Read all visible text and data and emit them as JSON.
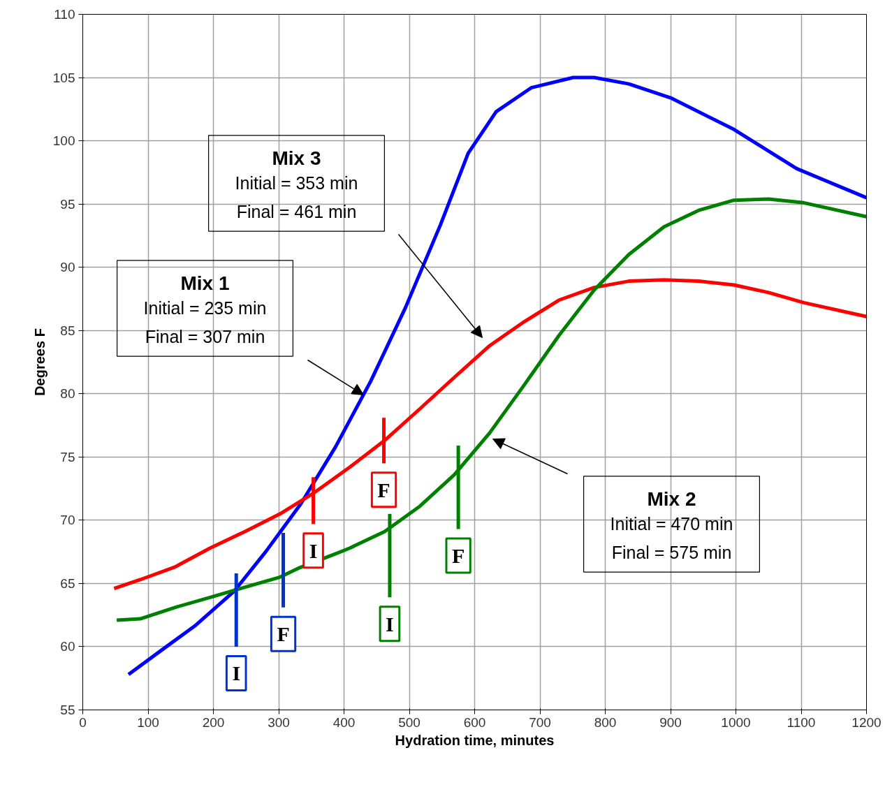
{
  "chart_data": {
    "type": "line",
    "xlabel": "Hydration time, minutes",
    "ylabel": "Degrees F",
    "xlim": [
      0,
      1200
    ],
    "ylim": [
      55,
      110
    ],
    "xticks": [
      0,
      100,
      200,
      300,
      400,
      500,
      600,
      700,
      800,
      900,
      1000,
      1100,
      1200
    ],
    "yticks": [
      55,
      60,
      65,
      70,
      75,
      80,
      85,
      90,
      95,
      100,
      105,
      110
    ],
    "grid": true,
    "line_style": "solid",
    "series": [
      {
        "color": "#0000ff",
        "x": [
          70,
          120,
          173,
          232,
          280,
          334,
          387,
          441,
          494,
          548,
          590,
          633,
          687,
          751,
          783,
          836,
          900,
          997,
          1093,
          1200
        ],
        "values": [
          57.8,
          59.7,
          61.7,
          64.4,
          67.5,
          71.3,
          75.8,
          81.0,
          86.8,
          93.4,
          99.0,
          102.3,
          104.2,
          105.0,
          105.0,
          104.5,
          103.4,
          100.9,
          97.8,
          95.5
        ]
      },
      {
        "color": "#ff0000",
        "x": [
          48,
          88,
          141,
          195,
          248,
          302,
          355,
          409,
          462,
          516,
          569,
          623,
          676,
          729,
          783,
          836,
          890,
          943,
          997,
          1050,
          1104,
          1200
        ],
        "values": [
          64.6,
          65.3,
          66.3,
          67.8,
          69.1,
          70.5,
          72.2,
          74.2,
          76.3,
          78.8,
          81.3,
          83.8,
          85.7,
          87.4,
          88.4,
          88.9,
          89.0,
          88.9,
          88.6,
          88.0,
          87.2,
          86.1
        ]
      },
      {
        "color": "#008000",
        "x": [
          52,
          88,
          141,
          195,
          248,
          302,
          330,
          390,
          409,
          462,
          516,
          569,
          623,
          676,
          729,
          783,
          836,
          890,
          943,
          997,
          1050,
          1104,
          1200
        ],
        "values": [
          62.1,
          62.2,
          63.1,
          63.9,
          64.7,
          65.5,
          66.2,
          67.4,
          67.8,
          69.1,
          71.1,
          73.6,
          76.9,
          80.7,
          84.6,
          88.2,
          91.0,
          93.2,
          94.5,
          95.3,
          95.4,
          95.1,
          94.0
        ]
      },
      {
        "color": "#0033cc",
        "x": [
          235,
          235
        ],
        "values": [
          65.8,
          60.0
        ]
      },
      {
        "color": "#0033cc",
        "x": [
          307,
          307
        ],
        "values": [
          69.0,
          63.1
        ]
      },
      {
        "color": "#ff0000",
        "x": [
          353,
          353
        ],
        "values": [
          73.4,
          69.7
        ]
      },
      {
        "color": "#ff0000",
        "x": [
          461,
          461
        ],
        "values": [
          78.1,
          74.5
        ]
      },
      {
        "color": "#008000",
        "x": [
          470,
          470
        ],
        "values": [
          70.5,
          63.9
        ]
      },
      {
        "color": "#008000",
        "x": [
          575,
          575
        ],
        "values": [
          75.9,
          69.3
        ]
      }
    ],
    "annotations": [
      "Mix 3\nInitial = 353 min\nFinal = 461 min",
      "Mix 1\nInitial = 235 min\nFinal = 307 min",
      "Mix 2\nInitial = 470 min\nFinal = 575 min",
      "I",
      "F",
      "I",
      "F",
      "I",
      "F"
    ]
  }
}
